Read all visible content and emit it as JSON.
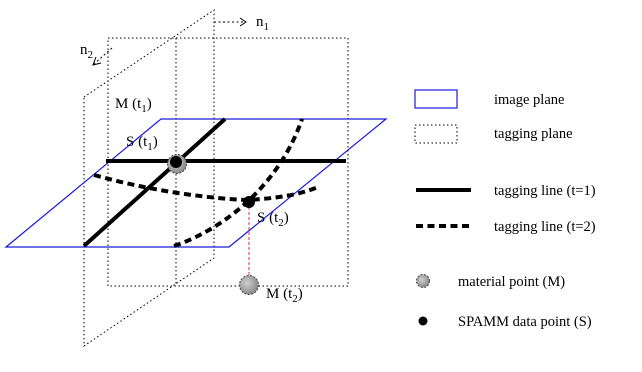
{
  "labels": {
    "n1": "n",
    "n1_sub": "1",
    "n2": "n",
    "n2_sub": "2",
    "m_t1": "M (t",
    "m_t1_sub": "1",
    "m_t1_close": ")",
    "s_t1": "S (t",
    "s_t1_sub": "1",
    "s_t1_close": ")",
    "s_t2": "S (t",
    "s_t2_sub": "2",
    "s_t2_close": ")",
    "m_t2": "M (t",
    "m_t2_sub": "2",
    "m_t2_close": ")"
  },
  "legend": {
    "image_plane": "image plane",
    "tagging_plane": "tagging plane",
    "tagging_line_t1": "tagging line (t=1)",
    "tagging_line_t2": "tagging line (t=2)",
    "material_point": "material point  (M)",
    "spamm_point": "SPAMM data point  (S)"
  },
  "colors": {
    "image_plane": "#1a1adb",
    "tagging_plane": "#000000",
    "displacement": "#e03030",
    "material_fill": "#a8a8a8"
  }
}
